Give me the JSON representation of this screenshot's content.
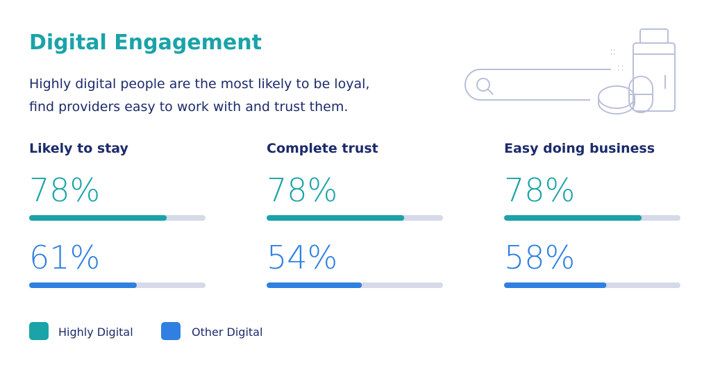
{
  "title": "Digital Engagement",
  "subtitle": [
    "Highly digital people are the most likely to be loyal,",
    "find providers easy to work with and trust them."
  ],
  "chart_data": [
    {
      "type": "bar",
      "title": "Likely to stay",
      "xlim": [
        0,
        100
      ],
      "track_color": "#d5d9e8",
      "series": [
        {
          "name": "Highly Digital",
          "color": "#1aa3a8",
          "values": [
            78
          ],
          "value_labels": [
            "78%"
          ]
        },
        {
          "name": "Other Digital",
          "color": "#2f80e0",
          "values": [
            61
          ],
          "value_labels": [
            "61%"
          ]
        }
      ]
    },
    {
      "type": "bar",
      "title": "Complete trust",
      "xlim": [
        0,
        100
      ],
      "track_color": "#d5d9e8",
      "series": [
        {
          "name": "Highly Digital",
          "color": "#1aa3a8",
          "values": [
            78
          ],
          "value_labels": [
            "78%"
          ]
        },
        {
          "name": "Other Digital",
          "color": "#2f80e0",
          "values": [
            54
          ],
          "value_labels": [
            "54%"
          ]
        }
      ]
    },
    {
      "type": "bar",
      "title": "Easy doing business",
      "xlim": [
        0,
        100
      ],
      "track_color": "#d5d9e8",
      "series": [
        {
          "name": "Highly Digital",
          "color": "#1aa3a8",
          "values": [
            78
          ],
          "value_labels": [
            "78%"
          ]
        },
        {
          "name": "Other Digital",
          "color": "#2f80e0",
          "values": [
            58
          ],
          "value_labels": [
            "58%"
          ]
        }
      ]
    }
  ]
}
